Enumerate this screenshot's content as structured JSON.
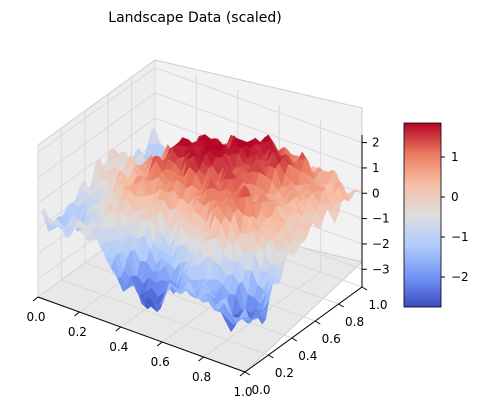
{
  "chart_data": {
    "type": "surface3d",
    "title": "Landscape Data (scaled)",
    "colormap": "coolwarm",
    "colormap_stops": [
      "#3b4cc0",
      "#7396f5",
      "#b0cbfc",
      "#dddddd",
      "#f6bfa6",
      "#ea7b60",
      "#b40426"
    ],
    "x_ticks": [
      "0.0",
      "0.2",
      "0.4",
      "0.6",
      "0.8",
      "1.0"
    ],
    "y_ticks": [
      "0.0",
      "0.2",
      "0.4",
      "0.6",
      "0.8",
      "1.0"
    ],
    "z_ticks": [
      "−3",
      "−2",
      "−1",
      "0",
      "1",
      "2"
    ],
    "xlim": [
      0,
      1
    ],
    "ylim": [
      0,
      1
    ],
    "zlim": [
      -3.7,
      2.3
    ],
    "colorbar_ticks": [
      "1",
      "0",
      "−1",
      "−2"
    ],
    "colorbar_range": [
      -2.75,
      1.85
    ],
    "surface_peaks": [
      {
        "x": 0.45,
        "y": 0.55,
        "z": 1.7
      },
      {
        "x": 0.65,
        "y": 0.75,
        "z": 1.5
      },
      {
        "x": 0.75,
        "y": 0.35,
        "z": 1.4
      },
      {
        "x": 0.3,
        "y": 0.3,
        "z": 0.6
      },
      {
        "x": 0.85,
        "y": 0.85,
        "z": 0.4
      }
    ],
    "surface_valleys": [
      {
        "x": 0.5,
        "y": 0.05,
        "z": -2.6
      },
      {
        "x": 0.9,
        "y": 0.15,
        "z": -2.7
      },
      {
        "x": 0.15,
        "y": 0.9,
        "z": -1.6
      },
      {
        "x": 0.05,
        "y": 0.2,
        "z": -1.4
      }
    ],
    "grid_on": true
  }
}
